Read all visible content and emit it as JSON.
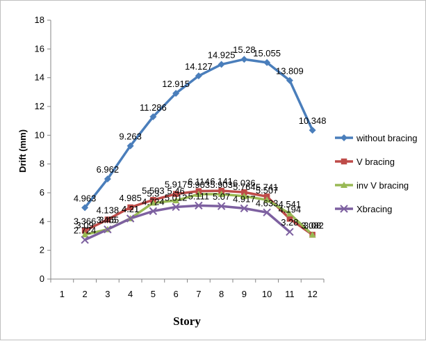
{
  "chart_data": {
    "type": "line",
    "xlabel": "Story",
    "ylabel": "Drift (mm)",
    "x": [
      1,
      2,
      3,
      4,
      5,
      6,
      7,
      8,
      9,
      10,
      11,
      12
    ],
    "ylim": [
      0,
      18
    ],
    "yticks": [
      0,
      2,
      4,
      6,
      8,
      10,
      12,
      14,
      16,
      18
    ],
    "grid": false,
    "legend_position": "right",
    "series": [
      {
        "name": "without bracing",
        "color": "#4a7ebb",
        "marker": "diamond",
        "x": [
          2,
          3,
          4,
          5,
          6,
          7,
          8,
          9,
          10,
          11,
          12
        ],
        "values": [
          4.963,
          6.962,
          9.263,
          11.286,
          12.915,
          14.127,
          14.925,
          15.28,
          15.055,
          13.809,
          10.348
        ],
        "labels": [
          "4.963",
          "6.962",
          "9.263",
          "11.286",
          "12.915",
          "14.127",
          "14.925",
          "15.28",
          "15.055",
          "13.809",
          "10.348"
        ]
      },
      {
        "name": "V bracing",
        "color": "#be4b48",
        "marker": "square",
        "x": [
          2,
          3,
          4,
          5,
          6,
          7,
          8,
          9,
          10,
          11,
          12
        ],
        "values": [
          3.366,
          4.138,
          4.985,
          5.503,
          5.917,
          6.114,
          6.141,
          6.036,
          5.741,
          4.194,
          3.082
        ],
        "labels": [
          "3.366",
          "4.138",
          "4.985",
          "5.503",
          "5.917",
          "6.114",
          "6.141",
          "6.036",
          "5.741",
          "4.194",
          "3.082"
        ]
      },
      {
        "name": "inv V bracing",
        "color": "#98b954",
        "marker": "triangle",
        "x": [
          2,
          3,
          4,
          5,
          6,
          7,
          8,
          9,
          10,
          11,
          12
        ],
        "values": [
          3.09,
          3.455,
          4.21,
          5.3,
          5.46,
          5.903,
          5.903,
          5.764,
          5.507,
          4.541,
          3.08
        ],
        "labels": [
          "3.09",
          "3.455",
          "4.21",
          "5.3",
          "5.46",
          "5.903",
          "5.903",
          "5.764",
          "5.507",
          "4.541",
          "3.08"
        ]
      },
      {
        "name": "Xbracing",
        "color": "#7d60a0",
        "marker": "x",
        "x": [
          2,
          3,
          4,
          5,
          6,
          7,
          8,
          9,
          10,
          11
        ],
        "values": [
          2.724,
          3.45,
          4.21,
          4.724,
          5.012,
          5.111,
          5.07,
          4.917,
          4.633,
          3.28
        ],
        "labels": [
          "2.724",
          "3.45",
          "4.21",
          "4.724",
          "5.012",
          "5.111",
          "5.07",
          "4.917",
          "4.633",
          "3.28"
        ]
      }
    ]
  }
}
